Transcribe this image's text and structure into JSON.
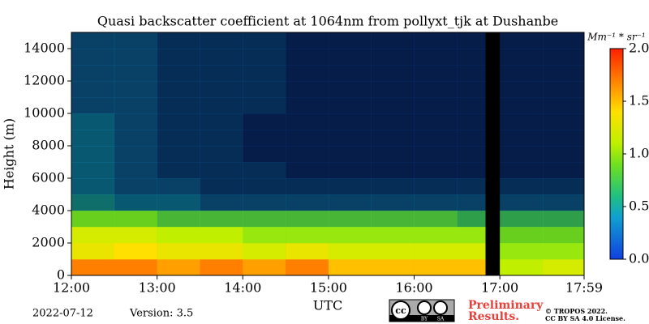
{
  "chart_data": {
    "type": "heatmap",
    "title": "Quasi backscatter coefficient at 1064nm from pollyxt_tjk at Dushanbe",
    "ylabel": "Height (m)",
    "xlabel": "UTC",
    "xlim": [
      12,
      17.983
    ],
    "ylim": [
      0,
      15000
    ],
    "xticks": [
      {
        "value": 12,
        "label": "12:00"
      },
      {
        "value": 13,
        "label": "13:00"
      },
      {
        "value": 14,
        "label": "14:00"
      },
      {
        "value": 15,
        "label": "15:00"
      },
      {
        "value": 16,
        "label": "16:00"
      },
      {
        "value": 17,
        "label": "17:00"
      },
      {
        "value": 17.983,
        "label": "17:59"
      }
    ],
    "yticks": [
      0,
      2000,
      4000,
      6000,
      8000,
      10000,
      12000,
      14000
    ],
    "x_bins": [
      12,
      12.5,
      13,
      13.5,
      14,
      14.5,
      15,
      15.5,
      16,
      16.5,
      16.83,
      17.0,
      17.5,
      17.983
    ],
    "y_bins": [
      0,
      1000,
      2000,
      3000,
      4000,
      5000,
      6000,
      7000,
      8000,
      9000,
      10000,
      11000,
      12000,
      13000,
      14000,
      15000
    ],
    "z": [
      [
        1.7,
        1.7,
        1.6,
        1.7,
        1.6,
        1.7,
        1.5,
        1.5,
        1.5,
        1.5,
        null,
        1.1,
        1.2
      ],
      [
        1.3,
        1.4,
        1.3,
        1.3,
        1.2,
        1.3,
        1.2,
        1.2,
        1.2,
        1.2,
        null,
        1.0,
        1.0
      ],
      [
        1.2,
        1.2,
        1.1,
        1.1,
        1.0,
        1.0,
        1.0,
        1.0,
        1.0,
        1.0,
        null,
        0.9,
        0.9
      ],
      [
        0.9,
        0.9,
        0.8,
        0.8,
        0.8,
        0.8,
        0.8,
        0.8,
        0.8,
        0.7,
        null,
        0.7,
        0.7
      ],
      [
        0.5,
        0.4,
        0.4,
        0.3,
        0.3,
        0.3,
        0.3,
        0.3,
        0.3,
        0.3,
        null,
        0.3,
        0.3
      ],
      [
        0.4,
        0.3,
        0.3,
        0.2,
        0.2,
        0.2,
        0.2,
        0.2,
        0.2,
        0.2,
        null,
        0.2,
        0.2
      ],
      [
        0.4,
        0.3,
        0.2,
        0.2,
        0.2,
        0.1,
        0.1,
        0.1,
        0.1,
        0.1,
        null,
        0.1,
        0.1
      ],
      [
        0.4,
        0.3,
        0.2,
        0.2,
        0.1,
        0.1,
        0.1,
        0.1,
        0.1,
        0.1,
        null,
        0.1,
        0.1
      ],
      [
        0.4,
        0.3,
        0.2,
        0.2,
        0.1,
        0.1,
        0.1,
        0.1,
        0.1,
        0.1,
        null,
        0.1,
        0.1
      ],
      [
        0.4,
        0.3,
        0.2,
        0.2,
        0.1,
        0.1,
        0.1,
        0.1,
        0.1,
        0.1,
        null,
        0.1,
        0.1
      ],
      [
        0.3,
        0.3,
        0.2,
        0.2,
        0.2,
        0.1,
        0.1,
        0.1,
        0.1,
        0.1,
        null,
        0.1,
        0.1
      ],
      [
        0.3,
        0.3,
        0.2,
        0.2,
        0.2,
        0.1,
        0.1,
        0.1,
        0.1,
        0.1,
        null,
        0.1,
        0.1
      ],
      [
        0.3,
        0.3,
        0.2,
        0.2,
        0.2,
        0.1,
        0.1,
        0.1,
        0.1,
        0.1,
        null,
        0.1,
        0.1
      ],
      [
        0.3,
        0.3,
        0.2,
        0.2,
        0.2,
        0.1,
        0.1,
        0.1,
        0.1,
        0.1,
        null,
        0.1,
        0.1
      ],
      [
        0.3,
        0.3,
        0.2,
        0.2,
        0.2,
        0.1,
        0.1,
        0.1,
        0.1,
        0.1,
        null,
        0.1,
        0.1
      ]
    ],
    "colorbar": {
      "label": "Mm⁻¹ * sr⁻¹",
      "lim": [
        0,
        2
      ],
      "ticks": [
        {
          "value": 0,
          "label": "0.0"
        },
        {
          "value": 0.5,
          "label": "0.5"
        },
        {
          "value": 1,
          "label": "1.0"
        },
        {
          "value": 1.5,
          "label": "1.5"
        },
        {
          "value": 2,
          "label": "2.0"
        }
      ]
    },
    "date": "2022-07-12",
    "version": "Version: 3.5",
    "logo_labels": [
      "cc",
      "BY",
      "SA"
    ],
    "preliminary": [
      "Preliminary",
      "Results."
    ],
    "copyright": [
      "© TROPOS 2022.",
      "CC BY SA 4.0 License."
    ]
  }
}
